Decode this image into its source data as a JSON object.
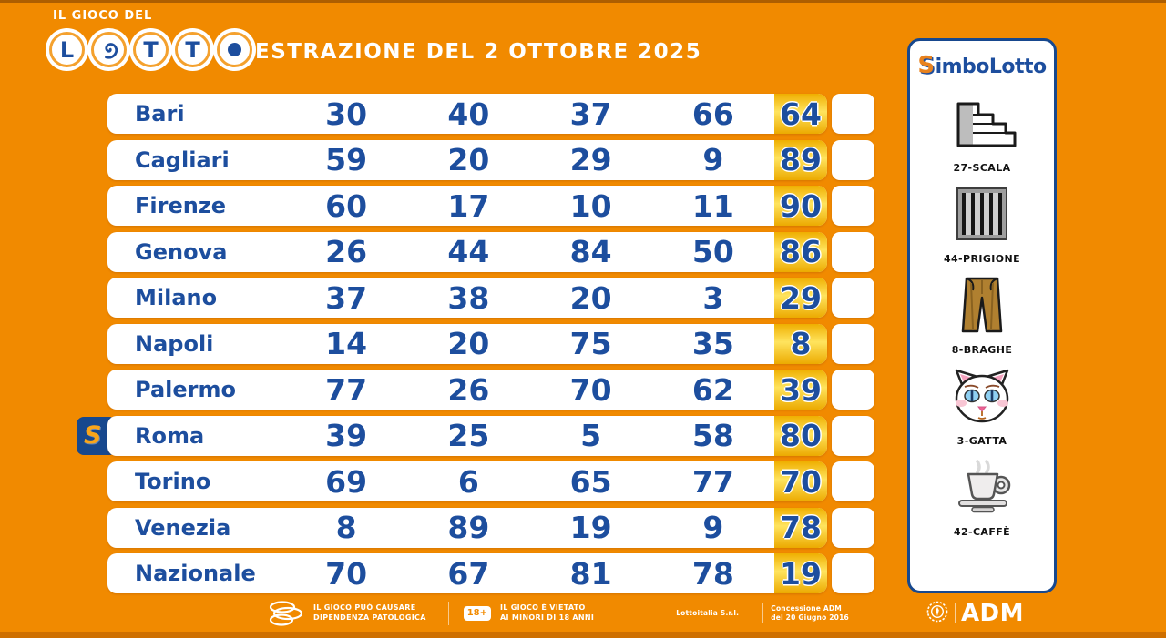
{
  "header": {
    "brand_top": "IL GIOCO DEL",
    "logo_word": "LOTTO",
    "title": "ESTRAZIONE DEL 2 OTTOBRE 2025"
  },
  "table": {
    "rows": [
      {
        "city": "Bari",
        "numbers": [
          30,
          40,
          37,
          66,
          64
        ]
      },
      {
        "city": "Cagliari",
        "numbers": [
          59,
          20,
          29,
          9,
          89
        ]
      },
      {
        "city": "Firenze",
        "numbers": [
          60,
          17,
          10,
          11,
          90
        ]
      },
      {
        "city": "Genova",
        "numbers": [
          26,
          44,
          84,
          50,
          86
        ]
      },
      {
        "city": "Milano",
        "numbers": [
          37,
          38,
          20,
          3,
          29
        ]
      },
      {
        "city": "Napoli",
        "numbers": [
          14,
          20,
          75,
          35,
          8
        ]
      },
      {
        "city": "Palermo",
        "numbers": [
          77,
          26,
          70,
          62,
          39
        ]
      },
      {
        "city": "Roma",
        "numbers": [
          39,
          25,
          5,
          58,
          80
        ],
        "badge": true
      },
      {
        "city": "Torino",
        "numbers": [
          69,
          6,
          65,
          77,
          70
        ]
      },
      {
        "city": "Venezia",
        "numbers": [
          8,
          89,
          19,
          9,
          78
        ]
      },
      {
        "city": "Nazionale",
        "numbers": [
          70,
          67,
          81,
          78,
          19
        ]
      }
    ]
  },
  "simbolotto": {
    "title_initial": "S",
    "title_rest": "imboLotto",
    "badge_letter": "S",
    "symbols": [
      {
        "label": "27-SCALA",
        "icon": "stairs-icon"
      },
      {
        "label": "44-PRIGIONE",
        "icon": "prison-icon"
      },
      {
        "label": "8-BRAGHE",
        "icon": "pants-icon"
      },
      {
        "label": "3-GATTA",
        "icon": "cat-icon"
      },
      {
        "label": "42-CAFFÈ",
        "icon": "coffee-icon"
      }
    ]
  },
  "footer": {
    "warning1_line1": "IL GIOCO PUÒ CAUSARE",
    "warning1_line2": "DIPENDENZA PATOLOGICA",
    "age_badge": "18+",
    "warning2_line1": "IL GIOCO È VIETATO",
    "warning2_line2": "AI MINORI DI 18 ANNI",
    "company": "Lottoitalia S.r.l.",
    "concession_line1": "Concessione ADM",
    "concession_line2": "del 20 Giugno 2016",
    "adm_label": "ADM"
  },
  "colors": {
    "background_orange": "#F18A00",
    "primary_blue": "#1D4E9E",
    "panel_border_blue": "#17488E",
    "highlight_gold": "#FFE45E",
    "white": "#FFFFFF"
  }
}
